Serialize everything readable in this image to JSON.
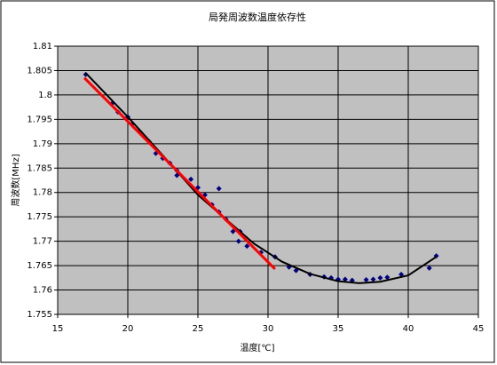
{
  "chart_data": {
    "type": "scatter",
    "title": "局発周波数温度依存性",
    "x_label": "温度[℃]",
    "y_label": "周波数[MHz]",
    "xlim": [
      15,
      45
    ],
    "xticks": [
      15,
      20,
      25,
      30,
      35,
      40,
      45
    ],
    "ylim": [
      1.755,
      1.81
    ],
    "yticks": [
      1.755,
      1.76,
      1.765,
      1.77,
      1.775,
      1.78,
      1.785,
      1.79,
      1.795,
      1.8,
      1.805,
      1.81
    ],
    "grid": true,
    "background": "#c0c0c0",
    "series": [
      {
        "mode": "markers",
        "color": "#000080",
        "x": [
          17.0,
          18.9,
          19.3,
          20.0,
          20.3,
          20.8,
          21.5,
          22.0,
          22.5,
          23.0,
          23.5,
          23.5,
          24.5,
          25.0,
          25.5,
          26.0,
          26.5,
          26.5,
          27.0,
          27.5,
          27.9,
          28.0,
          28.5,
          29.5,
          30.5,
          31.5,
          32.0,
          33.0,
          34.0,
          34.5,
          35.0,
          35.5,
          36.0,
          37.0,
          37.5,
          38.0,
          38.5,
          39.5,
          41.5,
          42.0
        ],
        "values": [
          1.8042,
          1.7983,
          1.7965,
          1.7955,
          1.794,
          1.7925,
          1.7905,
          1.788,
          1.787,
          1.786,
          1.7845,
          1.7835,
          1.7827,
          1.781,
          1.7795,
          1.7775,
          1.7808,
          1.776,
          1.7745,
          1.772,
          1.77,
          1.772,
          1.769,
          1.7677,
          1.7668,
          1.7647,
          1.764,
          1.7632,
          1.7627,
          1.7625,
          1.7622,
          1.7622,
          1.762,
          1.7621,
          1.7622,
          1.7625,
          1.7626,
          1.7632,
          1.7645,
          1.767
        ]
      },
      {
        "mode": "line",
        "color": "#000000",
        "x": [
          17,
          20,
          23,
          25,
          27,
          29,
          31,
          33,
          35,
          36.5,
          38,
          40,
          42
        ],
        "values": [
          1.8045,
          1.7955,
          1.786,
          1.7795,
          1.7745,
          1.7695,
          1.7658,
          1.7633,
          1.7618,
          1.7614,
          1.7617,
          1.763,
          1.7668
        ]
      },
      {
        "mode": "line",
        "color": "#ff0000",
        "x": [
          16.9,
          30.5
        ],
        "values": [
          1.8035,
          1.7643
        ]
      }
    ]
  }
}
